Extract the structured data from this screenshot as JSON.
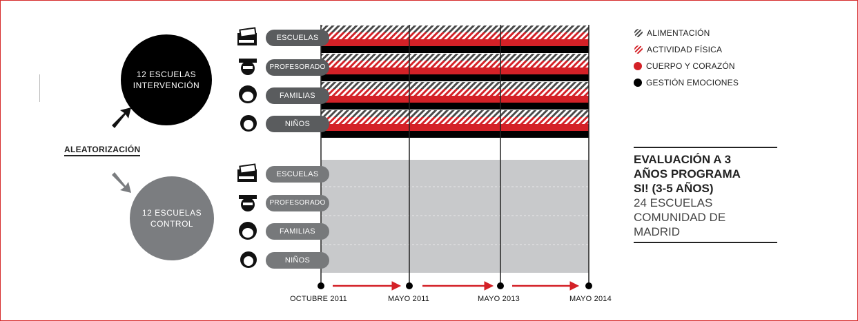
{
  "groups": {
    "intervention": {
      "line1": "12 ESCUELAS",
      "line2": "INTERVENCIÓN"
    },
    "control": {
      "line1": "12 ESCUELAS",
      "line2": "CONTROL"
    }
  },
  "randomization_label": "ALEATORIZACIÓN",
  "rows": {
    "intervention": [
      "ESCUELAS",
      "PROFESORADO",
      "FAMILIAS",
      "NIÑOS"
    ],
    "control": [
      "ESCUELAS",
      "PROFESORADO",
      "FAMILIAS",
      "NIÑOS"
    ]
  },
  "row_icons": [
    "school-icon",
    "teacher-icon",
    "family-icon",
    "child-icon"
  ],
  "legend": [
    {
      "label": "ALIMENTACIÓN",
      "pattern": "hatched-gray"
    },
    {
      "label": "ACTIVIDAD FÍSICA",
      "pattern": "hatched-red"
    },
    {
      "label": "CUERPO Y CORAZÓN",
      "color": "#d42127"
    },
    {
      "label": "GESTIÓN EMOCIONES",
      "color": "#000000"
    }
  ],
  "timeline": [
    "OCTUBRE 2011",
    "MAYO 2011",
    "MAYO 2013",
    "MAYO 2014"
  ],
  "evaluation": {
    "bold_lines": [
      "EVALUACIÓN A 3",
      "AÑOS PROGRAMA",
      "SI! (3-5 AÑOS)"
    ],
    "normal_lines": [
      "24 ESCUELAS",
      "COMUNIDAD DE",
      "MADRID"
    ]
  },
  "colors": {
    "red": "#d42127",
    "black": "#000000",
    "gray": "#7b7d80",
    "control_fill": "#c8c9cb"
  }
}
